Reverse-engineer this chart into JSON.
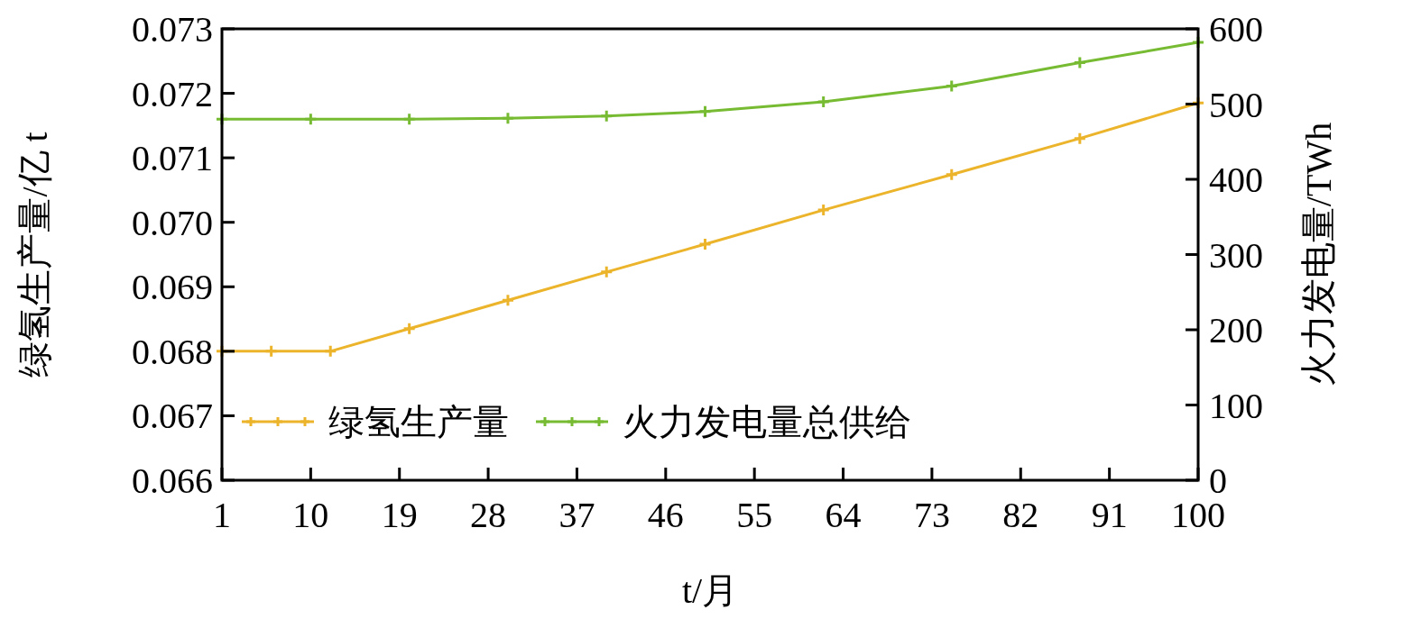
{
  "chart_data": {
    "type": "line",
    "xlabel": "t/月",
    "ylabel": "绿氢生产量/亿 t",
    "y2label": "火力发电量/TWh",
    "xlim": [
      1,
      100
    ],
    "xticks": [
      1,
      10,
      19,
      28,
      37,
      46,
      55,
      64,
      73,
      82,
      91,
      100
    ],
    "ylim": [
      0.066,
      0.073
    ],
    "yticks": [
      {
        "value": 0.066,
        "label": "0.066"
      },
      {
        "value": 0.067,
        "label": "0.067"
      },
      {
        "value": 0.068,
        "label": "0.068"
      },
      {
        "value": 0.069,
        "label": "0.069"
      },
      {
        "value": 0.07,
        "label": "0.070"
      },
      {
        "value": 0.071,
        "label": "0.071"
      },
      {
        "value": 0.072,
        "label": "0.072"
      },
      {
        "value": 0.073,
        "label": "0.073"
      }
    ],
    "y2lim": [
      0,
      600
    ],
    "y2ticks": [
      0,
      100,
      200,
      300,
      400,
      500,
      600
    ],
    "grid": false,
    "legend": "bottom left",
    "marker": "cross",
    "line_style": "solid",
    "series": [
      {
        "name": "绿氢生产量",
        "color": "#ebb42a",
        "x": [
          1,
          6,
          12,
          20,
          30,
          40,
          50,
          62,
          75,
          88,
          100
        ],
        "values": [
          0.068,
          0.068,
          0.068,
          0.06835,
          0.06879,
          0.06923,
          0.06966,
          0.07019,
          0.07074,
          0.0713,
          0.07185
        ]
      },
      {
        "name": "火力发电量总供给",
        "color": "#77bb33",
        "axis": "y2",
        "x": [
          1,
          10,
          20,
          30,
          40,
          50,
          62,
          75,
          88,
          100
        ],
        "values": [
          480,
          480,
          480,
          481,
          484,
          490,
          503,
          524,
          555,
          582
        ]
      }
    ]
  }
}
